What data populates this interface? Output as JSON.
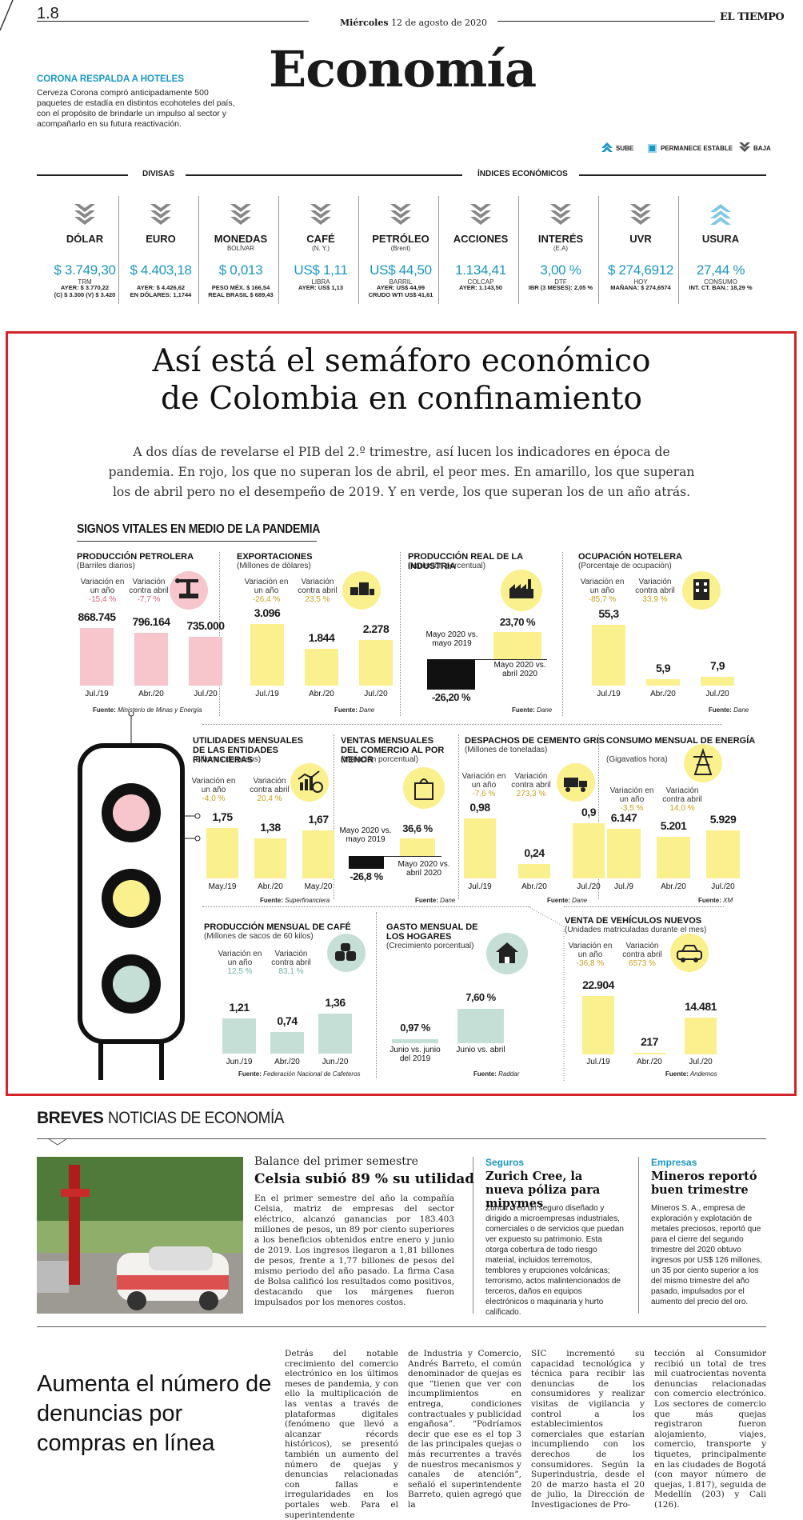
{
  "header": {
    "page": "1.8",
    "date_day": "Miércoles",
    "date_rest": "12 de agosto de 2020",
    "brand": "EL TIEMPO",
    "section": "Economía"
  },
  "teaser": {
    "title": "CORONA RESPALDA A HOTELES",
    "text": "Cerveza Corona compró anticipadamente 500 paquetes de estadía en distintos ecohoteles del país, con el propósito de brindarle un impulso al sector y acompañarlo en su futura reactivación."
  },
  "legend": {
    "up": "SUBE",
    "stable": "PERMANECE ESTABLE",
    "down": "BAJA"
  },
  "indicators_header": {
    "divisas": "DIVISAS",
    "indices": "ÍNDICES ECONÓMICOS"
  },
  "indicators": [
    {
      "name": "DÓLAR",
      "sub": "",
      "value": "$ 3.749,30",
      "unit": "TRM",
      "foot1": "AYER: $ 3.770,22",
      "foot2": "(C) $ 3.300 (V) $ 3.420",
      "trend": "down"
    },
    {
      "name": "EURO",
      "sub": "",
      "value": "$ 4.403,18",
      "unit": "",
      "foot1": "AYER: $ 4.426,62",
      "foot2": "EN DÓLARES: 1,1744",
      "trend": "down"
    },
    {
      "name": "MONEDAS",
      "sub": "BOLÍVAR",
      "value": "$ 0,013",
      "unit": "",
      "foot1": "PESO MÉX. $ 166,54",
      "foot2": "REAL BRASIL $ 689,43",
      "trend": "down"
    },
    {
      "name": "CAFÉ",
      "sub": "(N. Y.)",
      "value": "US$ 1,11",
      "unit": "LIBRA",
      "foot1": "AYER: US$ 1,13",
      "foot2": "",
      "trend": "down"
    },
    {
      "name": "PETRÓLEO",
      "sub": "(Brent)",
      "value": "US$ 44,50",
      "unit": "BARRIL",
      "foot1": "AYER: US$ 44,99",
      "foot2": "CRUDO WTI US$ 41,61",
      "trend": "down"
    },
    {
      "name": "ACCIONES",
      "sub": "",
      "value": "1.134,41",
      "unit": "COLCAP",
      "foot1": "AYER: 1.143,50",
      "foot2": "",
      "trend": "down"
    },
    {
      "name": "INTERÉS",
      "sub": "(E.A)",
      "value": "3,00 %",
      "unit": "DTF",
      "foot1": "IBR (3 MESES): 2,05 %",
      "foot2": "",
      "trend": "down"
    },
    {
      "name": "UVR",
      "sub": "",
      "value": "$ 274,6912",
      "unit": "HOY",
      "foot1": "MAÑANA: $ 274,6574",
      "foot2": "",
      "trend": "down"
    },
    {
      "name": "USURA",
      "sub": "",
      "value": "27,44 %",
      "unit": "CONSUMO",
      "foot1": "INT. CT. BAN.: 18,29 %",
      "foot2": "",
      "trend": "up"
    }
  ],
  "infographic": {
    "title_line1": "Así está el semáforo económico",
    "title_line2": "de Colombia en confinamiento",
    "intro_line1": "A dos días de revelarse el PIB del 2.º trimestre, así lucen los indicadores en época de",
    "intro_line2": "pandemia. En rojo, los que no superan los de abril, el peor mes. En amarillo, los que superan",
    "intro_line3": "los de abril pero no el desempeño de 2019. Y en verde, los que superan los de un año atrás.",
    "section_title": "SIGNOS VITALES EN MEDIO DE LA PANDEMIA",
    "var_year_label": "Variación en un año",
    "var_april_label": "Variación contra abril",
    "source_label": "Fuente:",
    "colors": {
      "red": "#f7c5cc",
      "yellow": "#fbf08e",
      "green": "#c5dfd7",
      "blue": "#1a96c4",
      "red_text": "#e0607a",
      "yellow_text": "#c9a020",
      "green_text": "#6bb5a2"
    }
  },
  "chart_data": [
    {
      "id": "petrolera",
      "type": "bar",
      "title": "PRODUCCIÓN PETROLERA",
      "subtitle": "(Barriles diarios)",
      "var_year": "-15,4 %",
      "var_april": "-7,7 %",
      "categories": [
        "Jul./19",
        "Abr./20",
        "Jul./20"
      ],
      "values": [
        868745,
        796164,
        735000
      ],
      "labels": [
        "868.745",
        "796.164",
        "735.000"
      ],
      "source": "Ministerio de Minas y Energía",
      "color": "red"
    },
    {
      "id": "exportaciones",
      "type": "bar",
      "title": "EXPORTACIONES",
      "subtitle": "(Millones de dólares)",
      "var_year": "-26,4 %",
      "var_april": "23,5 %",
      "categories": [
        "Jul./19",
        "Abr./20",
        "Jul./20"
      ],
      "values": [
        3096,
        1844,
        2278
      ],
      "labels": [
        "3.096",
        "1.844",
        "2.278"
      ],
      "source": "Dane",
      "color": "yellow"
    },
    {
      "id": "industria",
      "type": "bar",
      "title": "PRODUCCIÓN REAL DE LA INDUSTRIA",
      "subtitle": "(Variación porcentual)",
      "categories": [
        "Mayo 2020 vs. mayo 2019",
        "Mayo 2020 vs. abril 2020"
      ],
      "values": [
        -26.2,
        23.7
      ],
      "labels": [
        "-26,20 %",
        "23,70 %"
      ],
      "source": "Dane",
      "color": "yellow"
    },
    {
      "id": "hotelera",
      "type": "bar",
      "title": "OCUPACIÓN HOTELERA",
      "subtitle": "(Porcentaje de ocupación)",
      "var_year": "-85,7 %",
      "var_april": "33,9 %",
      "categories": [
        "Jul./19",
        "Abr./20",
        "Jul./20"
      ],
      "values": [
        55.3,
        5.9,
        7.9
      ],
      "labels": [
        "55,3",
        "5,9",
        "7,9"
      ],
      "source": "Dane",
      "color": "yellow"
    },
    {
      "id": "financieras",
      "type": "bar",
      "title": "UTILIDADES MENSUALES DE LAS ENTIDADES FINANCIERAS",
      "subtitle": "(Billones de pesos)",
      "var_year": "-4,0 %",
      "var_april": "20,4 %",
      "categories": [
        "May./19",
        "Abr./20",
        "May./20"
      ],
      "values": [
        1.75,
        1.38,
        1.67
      ],
      "labels": [
        "1,75",
        "1,38",
        "1,67"
      ],
      "source": "Superfinanciera",
      "color": "yellow"
    },
    {
      "id": "comercio",
      "type": "bar",
      "title": "VENTAS MENSUALES DEL COMERCIO AL POR MENOR",
      "subtitle": "(Variación porcentual)",
      "categories": [
        "Mayo 2020 vs. mayo 2019",
        "Mayo 2020 vs. abril 2020"
      ],
      "values": [
        -26.8,
        36.6
      ],
      "labels": [
        "-26,8 %",
        "36,6 %"
      ],
      "source": "Dane",
      "color": "yellow"
    },
    {
      "id": "cemento",
      "type": "bar",
      "title": "DESPACHOS DE CEMENTO GRIS",
      "subtitle": "(Millones de toneladas)",
      "var_year": "-7,6 %",
      "var_april": "273,3 %",
      "categories": [
        "Jul./19",
        "Abr./20",
        "Jul./20"
      ],
      "values": [
        0.98,
        0.24,
        0.9
      ],
      "labels": [
        "0,98",
        "0,24",
        "0,9"
      ],
      "source": "Dane",
      "color": "yellow"
    },
    {
      "id": "energia",
      "type": "bar",
      "title": "CONSUMO MENSUAL DE ENERGÍA",
      "subtitle": "(Gigavatios hora)",
      "var_year": "-3,5 %",
      "var_april": "14,0 %",
      "categories": [
        "Jul./9",
        "Abr./20",
        "Jul./20"
      ],
      "values": [
        6147,
        5201,
        5929
      ],
      "labels": [
        "6.147",
        "5.201",
        "5.929"
      ],
      "source": "XM",
      "color": "yellow"
    },
    {
      "id": "cafe",
      "type": "bar",
      "title": "PRODUCCIÓN MENSUAL DE CAFÉ",
      "subtitle": "(Millones de sacos de 60 kilos)",
      "var_year": "12,5 %",
      "var_april": "83,1 %",
      "categories": [
        "Jun./19",
        "Abr./20",
        "Jun./20"
      ],
      "values": [
        1.21,
        0.74,
        1.36
      ],
      "labels": [
        "1,21",
        "0,74",
        "1,36"
      ],
      "source": "Federación Nacional de Cafeteros",
      "color": "green"
    },
    {
      "id": "hogares",
      "type": "bar",
      "title": "GASTO MENSUAL DE LOS HOGARES",
      "subtitle": "(Crecimiento porcentual)",
      "categories": [
        "Junio vs. junio del 2019",
        "Junio vs. abril"
      ],
      "values": [
        0.97,
        7.6
      ],
      "labels": [
        "0,97 %",
        "7,60 %"
      ],
      "source": "Raddar",
      "color": "green"
    },
    {
      "id": "vehiculos",
      "type": "bar",
      "title": "VENTA DE VEHÍCULOS NUEVOS",
      "subtitle": "(Unidades matriculadas durante el mes)",
      "var_year": "-36,8 %",
      "var_april": "6573 %",
      "categories": [
        "Jul./19",
        "Abr./20",
        "Jul./20"
      ],
      "values": [
        22904,
        217,
        14481
      ],
      "labels": [
        "22.904",
        "217",
        "14.481"
      ],
      "source": "Andemos",
      "color": "yellow"
    }
  ],
  "breves": {
    "label_bold": "BREVES",
    "label_rest": "NOTICIAS DE ECONOMÍA",
    "main_kicker": "Balance del primer semestre",
    "main_title": "Celsia subió 89 % su utilidad",
    "main_text": "En el primer semestre del año la compañía Celsia, matriz de empresas del sector eléctrico, alcanzó ganancias por 183.403 millones de pesos, un 89 por ciento superiores a los beneficios obtenidos entre enero y junio de 2019. Los ingresos llegaron a 1,81 billones de pesos, frente a 1,77 billones de pesos del mismo periodo del año pasado. La firma Casa de Bolsa calificó los resultados como positivos, destacando que los márgenes fueron impulsados por los menores costos.",
    "col2_kicker": "Seguros",
    "col2_title": "Zurich Cree, la nueva póliza para mipymes",
    "col2_text": "Zurich creó un seguro diseñado y dirigido a microempresas industriales, comerciales o de servicios que puedan ver expuesto su patrimonio. Esta otorga cobertura de todo riesgo material, incluidos terremotos, temblores y erupciones volcánicas; terrorismo, actos malintencionados de terceros, daños en equipos electrónicos o maquinaria y hurto calificado.",
    "col3_kicker": "Empresas",
    "col3_title": "Mineros reportó buen trimestre",
    "col3_text": "Mineros S. A., empresa de exploración y explotación de metales preciosos, reportó que para el cierre del segundo trimestre del 2020 obtuvo ingresos por US$ 126 millones, un 35 por ciento superior a los del mismo trimestre del año pasado, impulsados por el aumento del precio del oro."
  },
  "bottom": {
    "headline": "Aumenta el número de denuncias por compras en línea",
    "col1": "Detrás del notable crecimiento del comercio electrónico en los últimos meses de pandemia, y con ello la multiplicación de las ventas a través de plataformas digitales (fenómeno que llevó a alcanzar récords históricos), se presentó también un aumento del número de quejas y denuncias relacionadas con fallas e irregularidades en los portales web. Para el superintendente",
    "col2": "de Industria y Comercio, Andrés Barreto, el común denominador de quejas es que “tienen que ver con incumplimientos en entrega, condiciones contractuales y publicidad engañosa”. “Podríamos decir que ese es el top 3 de las principales quejas o más recurrentes a través de nuestros mecanismos y canales de atención”, señaló el superintendente Barreto, quien agregó que la",
    "col3": "SIC incrementó su capacidad tecnológica y técnica para recibir las denuncias de los consumidores y realizar visitas de vigilancia y control a los establecimientos comerciales que estarían incumpliendo con los derechos de los consumidores. Según la Superindustria, desde el 20 de marzo hasta el 20 de julio, la Dirección de Investigaciones de Pro-",
    "col4": "tección al Consumidor recibió un total de tres mil cuatrocientas noventa denuncias relacionadas con comercio electrónico. Los sectores de comercio que más quejas registraron fueron alojamiento, viajes, comercio, transporte y tiquetes, principalmente en las ciudades de Bogotá (con mayor número de quejas, 1.817), seguida de Medellín (203) y Cali (126)."
  }
}
